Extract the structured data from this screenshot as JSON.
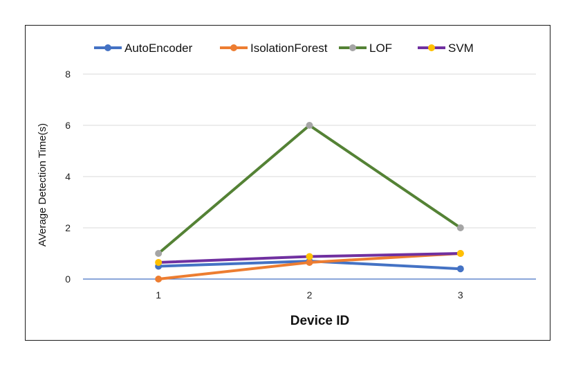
{
  "chart_data": {
    "type": "line",
    "x": [
      1,
      2,
      3
    ],
    "xlabel": "Device ID",
    "ylabel": "AVerage Detection Time(s)",
    "ylim": [
      0,
      8
    ],
    "yticks": [
      0,
      2,
      4,
      6,
      8
    ],
    "grid": true,
    "legend_position": "top",
    "series": [
      {
        "name": "AutoEncoder",
        "values": [
          0.5,
          0.7,
          0.4
        ],
        "color": "#4472C4",
        "marker": "#4472C4"
      },
      {
        "name": "IsolationForest",
        "values": [
          0.0,
          0.65,
          1.0
        ],
        "color": "#ED7D31",
        "marker": "#ED7D31"
      },
      {
        "name": "LOF",
        "values": [
          1.0,
          6.0,
          2.0
        ],
        "color": "#548235",
        "marker": "#A5A5A5"
      },
      {
        "name": "SVM",
        "values": [
          0.65,
          0.88,
          1.0
        ],
        "color": "#7030A0",
        "marker": "#FFC000"
      }
    ]
  }
}
